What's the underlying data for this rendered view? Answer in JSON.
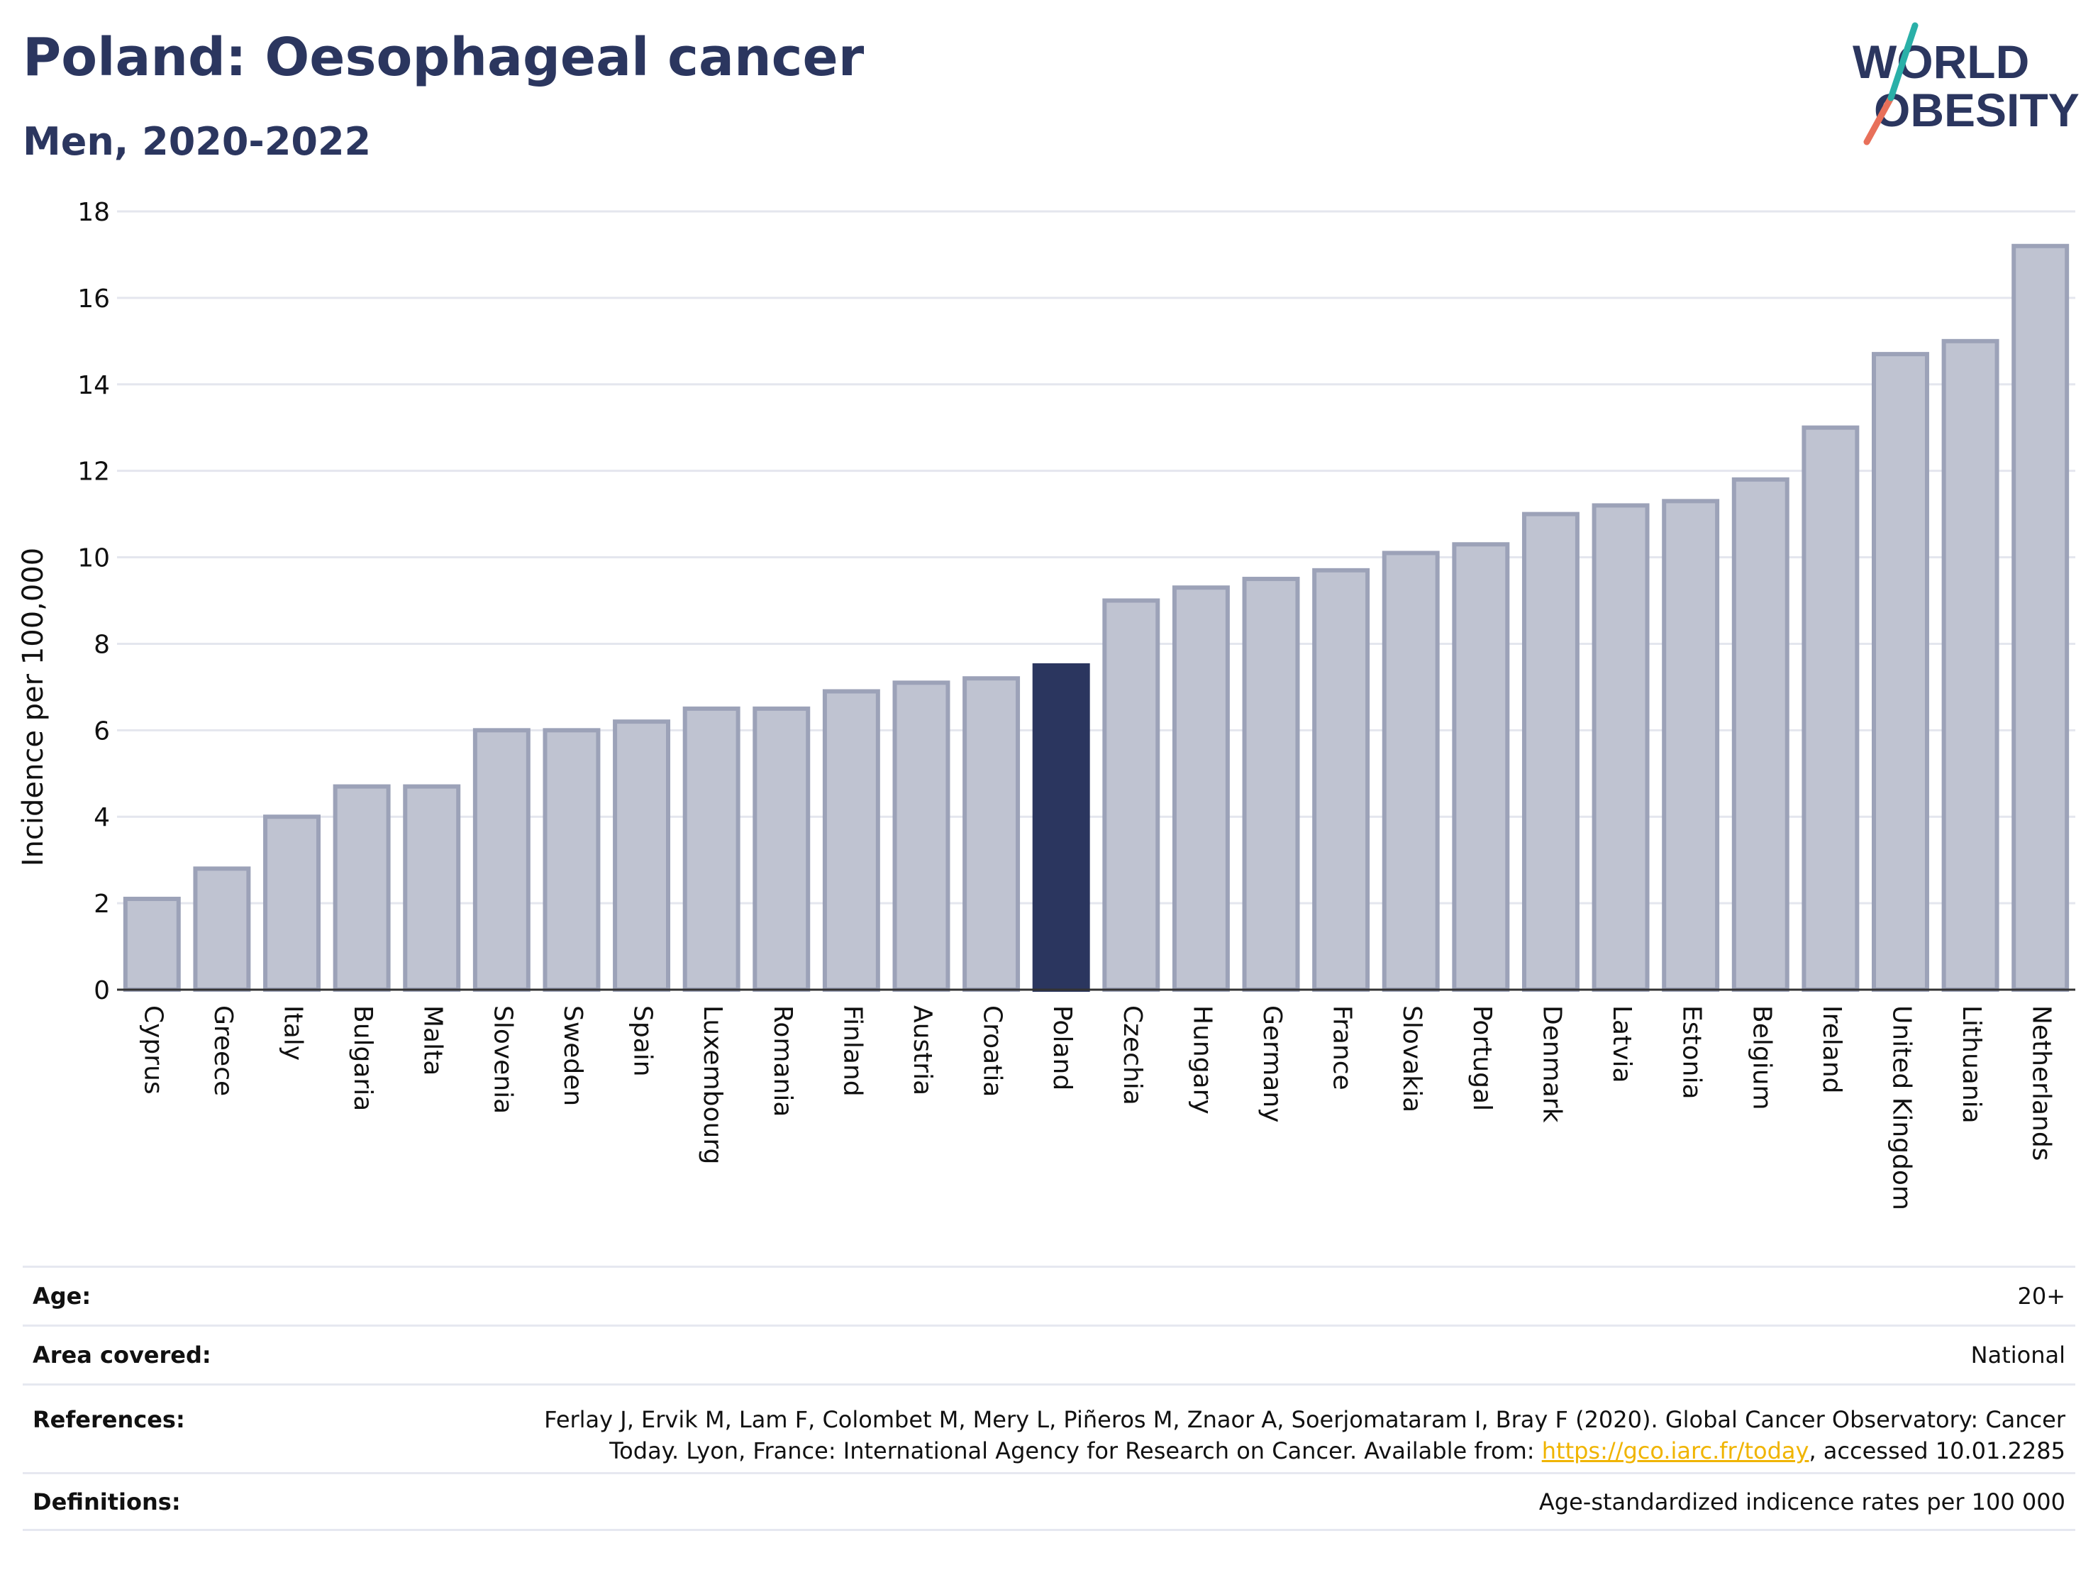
{
  "title": "Poland: Oesophageal cancer",
  "subtitle": "Men, 2020-2022",
  "logo": {
    "line1": "WORLD",
    "line2": "OBESITY"
  },
  "colors": {
    "title": "#2b365f",
    "highlight_bar": "#2b365f",
    "bar_fill": "#bfc3d1",
    "bar_stroke": "#9ca2b8",
    "logo_slash_teal": "#2ab0a8",
    "logo_slash_red": "#e8705a",
    "link": "#f0b400"
  },
  "chart_data": {
    "type": "bar",
    "ylabel": "Incidence per 100,000",
    "xlabel": "",
    "ylim": [
      0,
      18
    ],
    "yticks": [
      0,
      2,
      4,
      6,
      8,
      10,
      12,
      14,
      16,
      18
    ],
    "grid": true,
    "highlight": "Poland",
    "categories": [
      "Cyprus",
      "Greece",
      "Italy",
      "Bulgaria",
      "Malta",
      "Slovenia",
      "Sweden",
      "Spain",
      "Luxembourg",
      "Romania",
      "Finland",
      "Austria",
      "Croatia",
      "Poland",
      "Czechia",
      "Hungary",
      "Germany",
      "France",
      "Slovakia",
      "Portugal",
      "Denmark",
      "Latvia",
      "Estonia",
      "Belgium",
      "Ireland",
      "United Kingdom",
      "Lithuania",
      "Netherlands"
    ],
    "values": [
      2.1,
      2.8,
      4.0,
      4.7,
      4.7,
      6.0,
      6.0,
      6.2,
      6.5,
      6.5,
      6.9,
      7.1,
      7.2,
      7.5,
      9.0,
      9.3,
      9.5,
      9.7,
      10.1,
      10.3,
      11.0,
      11.2,
      11.3,
      11.8,
      13.0,
      14.7,
      15.0,
      17.2
    ]
  },
  "meta": {
    "age_label": "Age:",
    "age_value": "20+",
    "area_label": "Area covered:",
    "area_value": "National",
    "references_label": "References:",
    "references_line1": "Ferlay J, Ervik M, Lam F, Colombet M, Mery L, Piñeros M, Znaor A, Soerjomataram I, Bray F (2020). Global Cancer Observatory: Cancer",
    "references_line2_pre": "Today. Lyon, France: International Agency for Research on Cancer. Available from: ",
    "references_link": "https://gco.iarc.fr/today",
    "references_line2_post": ", accessed 10.01.2285",
    "definitions_label": "Definitions:",
    "definitions_value": "Age-standardized indicence rates per 100 000"
  }
}
